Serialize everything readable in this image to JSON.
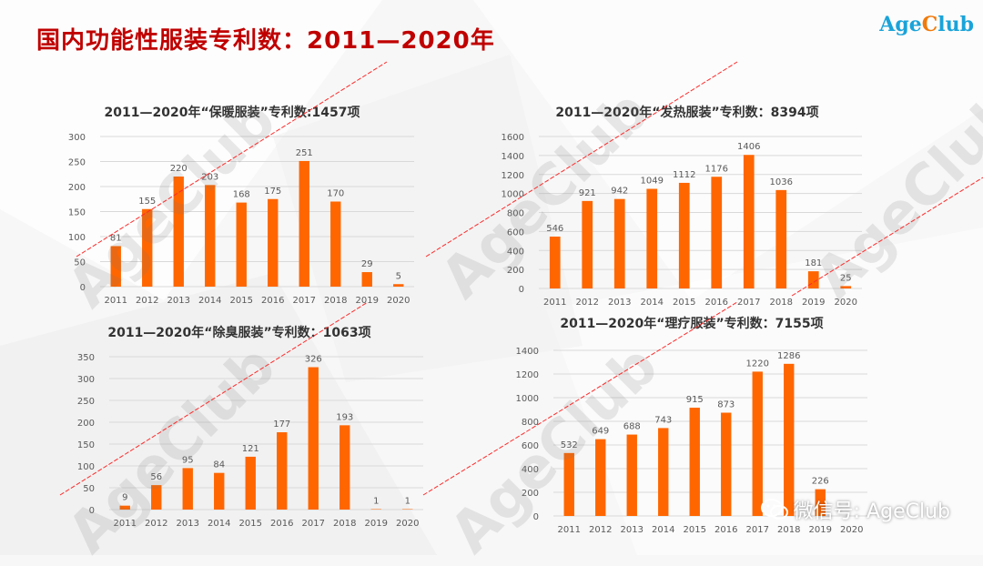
{
  "page_title": "国内功能性服装专利数：2011—2020年",
  "brand": {
    "prefix": "Age",
    "accent": "C",
    "suffix": "lub"
  },
  "watermark": {
    "text": "AgeClub"
  },
  "footer": {
    "wechat_label": "微信号: AgeClub",
    "icon": "wechat-icon"
  },
  "colors": {
    "bar": "#ff6600",
    "title": "#c00000",
    "axis_text": "#595959",
    "grid": "#d9d9d9",
    "slash": "#ff2a2a",
    "brand_blue": "#1aa3d9",
    "brand_orange": "#f07a0a"
  },
  "chart_data": [
    {
      "type": "bar",
      "title": "2011—2020年“保暖服装”专利数:1457项",
      "categories": [
        "2011",
        "2012",
        "2013",
        "2014",
        "2015",
        "2016",
        "2017",
        "2018",
        "2019",
        "2020"
      ],
      "values": [
        81,
        155,
        220,
        203,
        168,
        175,
        251,
        170,
        29,
        5
      ],
      "ylim": [
        0,
        300
      ],
      "yticks": [
        0,
        50,
        100,
        150,
        200,
        250,
        300
      ],
      "grid": true,
      "legend": "none"
    },
    {
      "type": "bar",
      "title": "2011—2020年“发热服装”专利数：8394项",
      "categories": [
        "2011",
        "2012",
        "2013",
        "2014",
        "2015",
        "2016",
        "2017",
        "2018",
        "2019",
        "2020"
      ],
      "values": [
        546,
        921,
        942,
        1049,
        1112,
        1176,
        1406,
        1036,
        181,
        25
      ],
      "ylim": [
        0,
        1600
      ],
      "yticks": [
        0,
        200,
        400,
        600,
        800,
        1000,
        1200,
        1400,
        1600
      ],
      "grid": true,
      "legend": "none"
    },
    {
      "type": "bar",
      "title": "2011—2020年“除臭服装”专利数：1063项",
      "categories": [
        "2011",
        "2012",
        "2013",
        "2014",
        "2015",
        "2016",
        "2017",
        "2018",
        "2019",
        "2020"
      ],
      "values": [
        9,
        56,
        95,
        84,
        121,
        177,
        326,
        193,
        1,
        1
      ],
      "ylim": [
        0,
        350
      ],
      "yticks": [
        0,
        50,
        100,
        150,
        200,
        250,
        300,
        350
      ],
      "grid": true,
      "legend": "none"
    },
    {
      "type": "bar",
      "title": "2011—2020年“理疗服装”专利数：7155项",
      "categories": [
        "2011",
        "2012",
        "2013",
        "2014",
        "2015",
        "2016",
        "2017",
        "2018",
        "2019",
        "2020"
      ],
      "values": [
        532,
        649,
        688,
        743,
        915,
        873,
        1220,
        1286,
        226,
        null
      ],
      "ylim": [
        0,
        1400
      ],
      "yticks": [
        0,
        200,
        400,
        600,
        800,
        1000,
        1200,
        1400
      ],
      "grid": true,
      "legend": "none"
    }
  ]
}
